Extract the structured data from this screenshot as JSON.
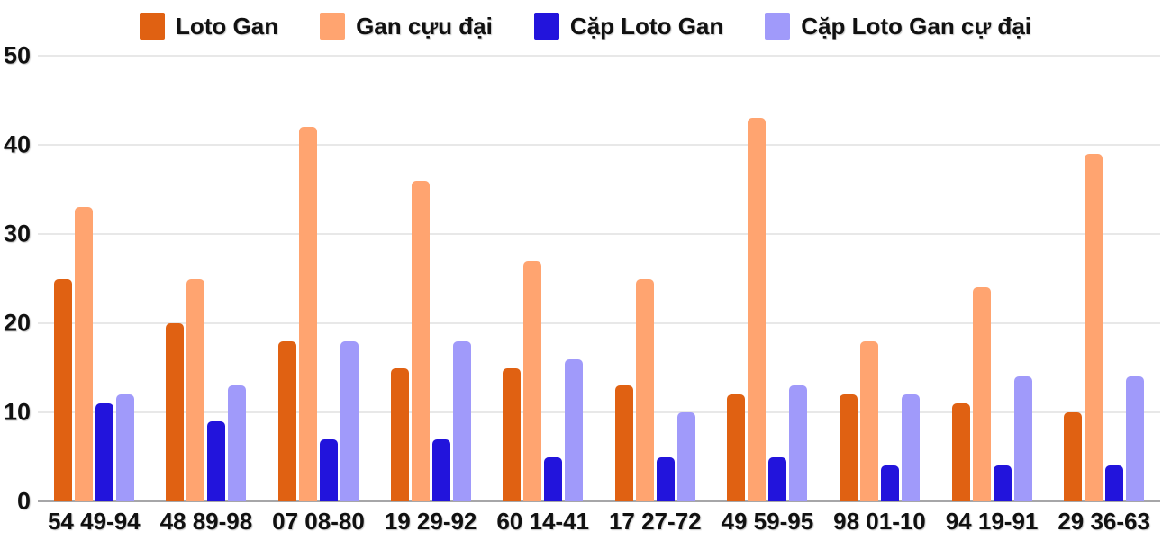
{
  "colors": {
    "background": "#ffffff",
    "grid": "#E8E8E8",
    "axis_line": "#A6A6A8",
    "text": "#111111"
  },
  "chart_data": {
    "type": "bar",
    "title": "",
    "xlabel": "",
    "ylabel": "",
    "categories": [
      "54 49-94",
      "48 89-98",
      "07 08-80",
      "19 29-92",
      "60 14-41",
      "17 27-72",
      "49 59-95",
      "98 01-10",
      "94 19-91",
      "29 36-63"
    ],
    "series": [
      {
        "name": "Loto Gan",
        "color": "#E06112",
        "values": [
          25,
          20,
          18,
          15,
          15,
          13,
          12,
          12,
          11,
          10
        ]
      },
      {
        "name": "Gan cựu đại",
        "color": "#FFA470",
        "values": [
          33,
          25,
          42,
          36,
          27,
          25,
          43,
          18,
          24,
          39
        ]
      },
      {
        "name": "Cặp Loto Gan",
        "color": "#2214DC",
        "values": [
          11,
          9,
          7,
          7,
          5,
          5,
          5,
          4,
          4,
          4
        ]
      },
      {
        "name": "Cặp Loto Gan cự đại",
        "color": "#A09AFA",
        "values": [
          12,
          13,
          18,
          18,
          16,
          10,
          13,
          12,
          14,
          14
        ]
      }
    ],
    "ylim": [
      0,
      50
    ],
    "yticks": [
      0,
      10,
      20,
      30,
      40,
      50
    ],
    "grid": true,
    "legend_position": "top"
  }
}
